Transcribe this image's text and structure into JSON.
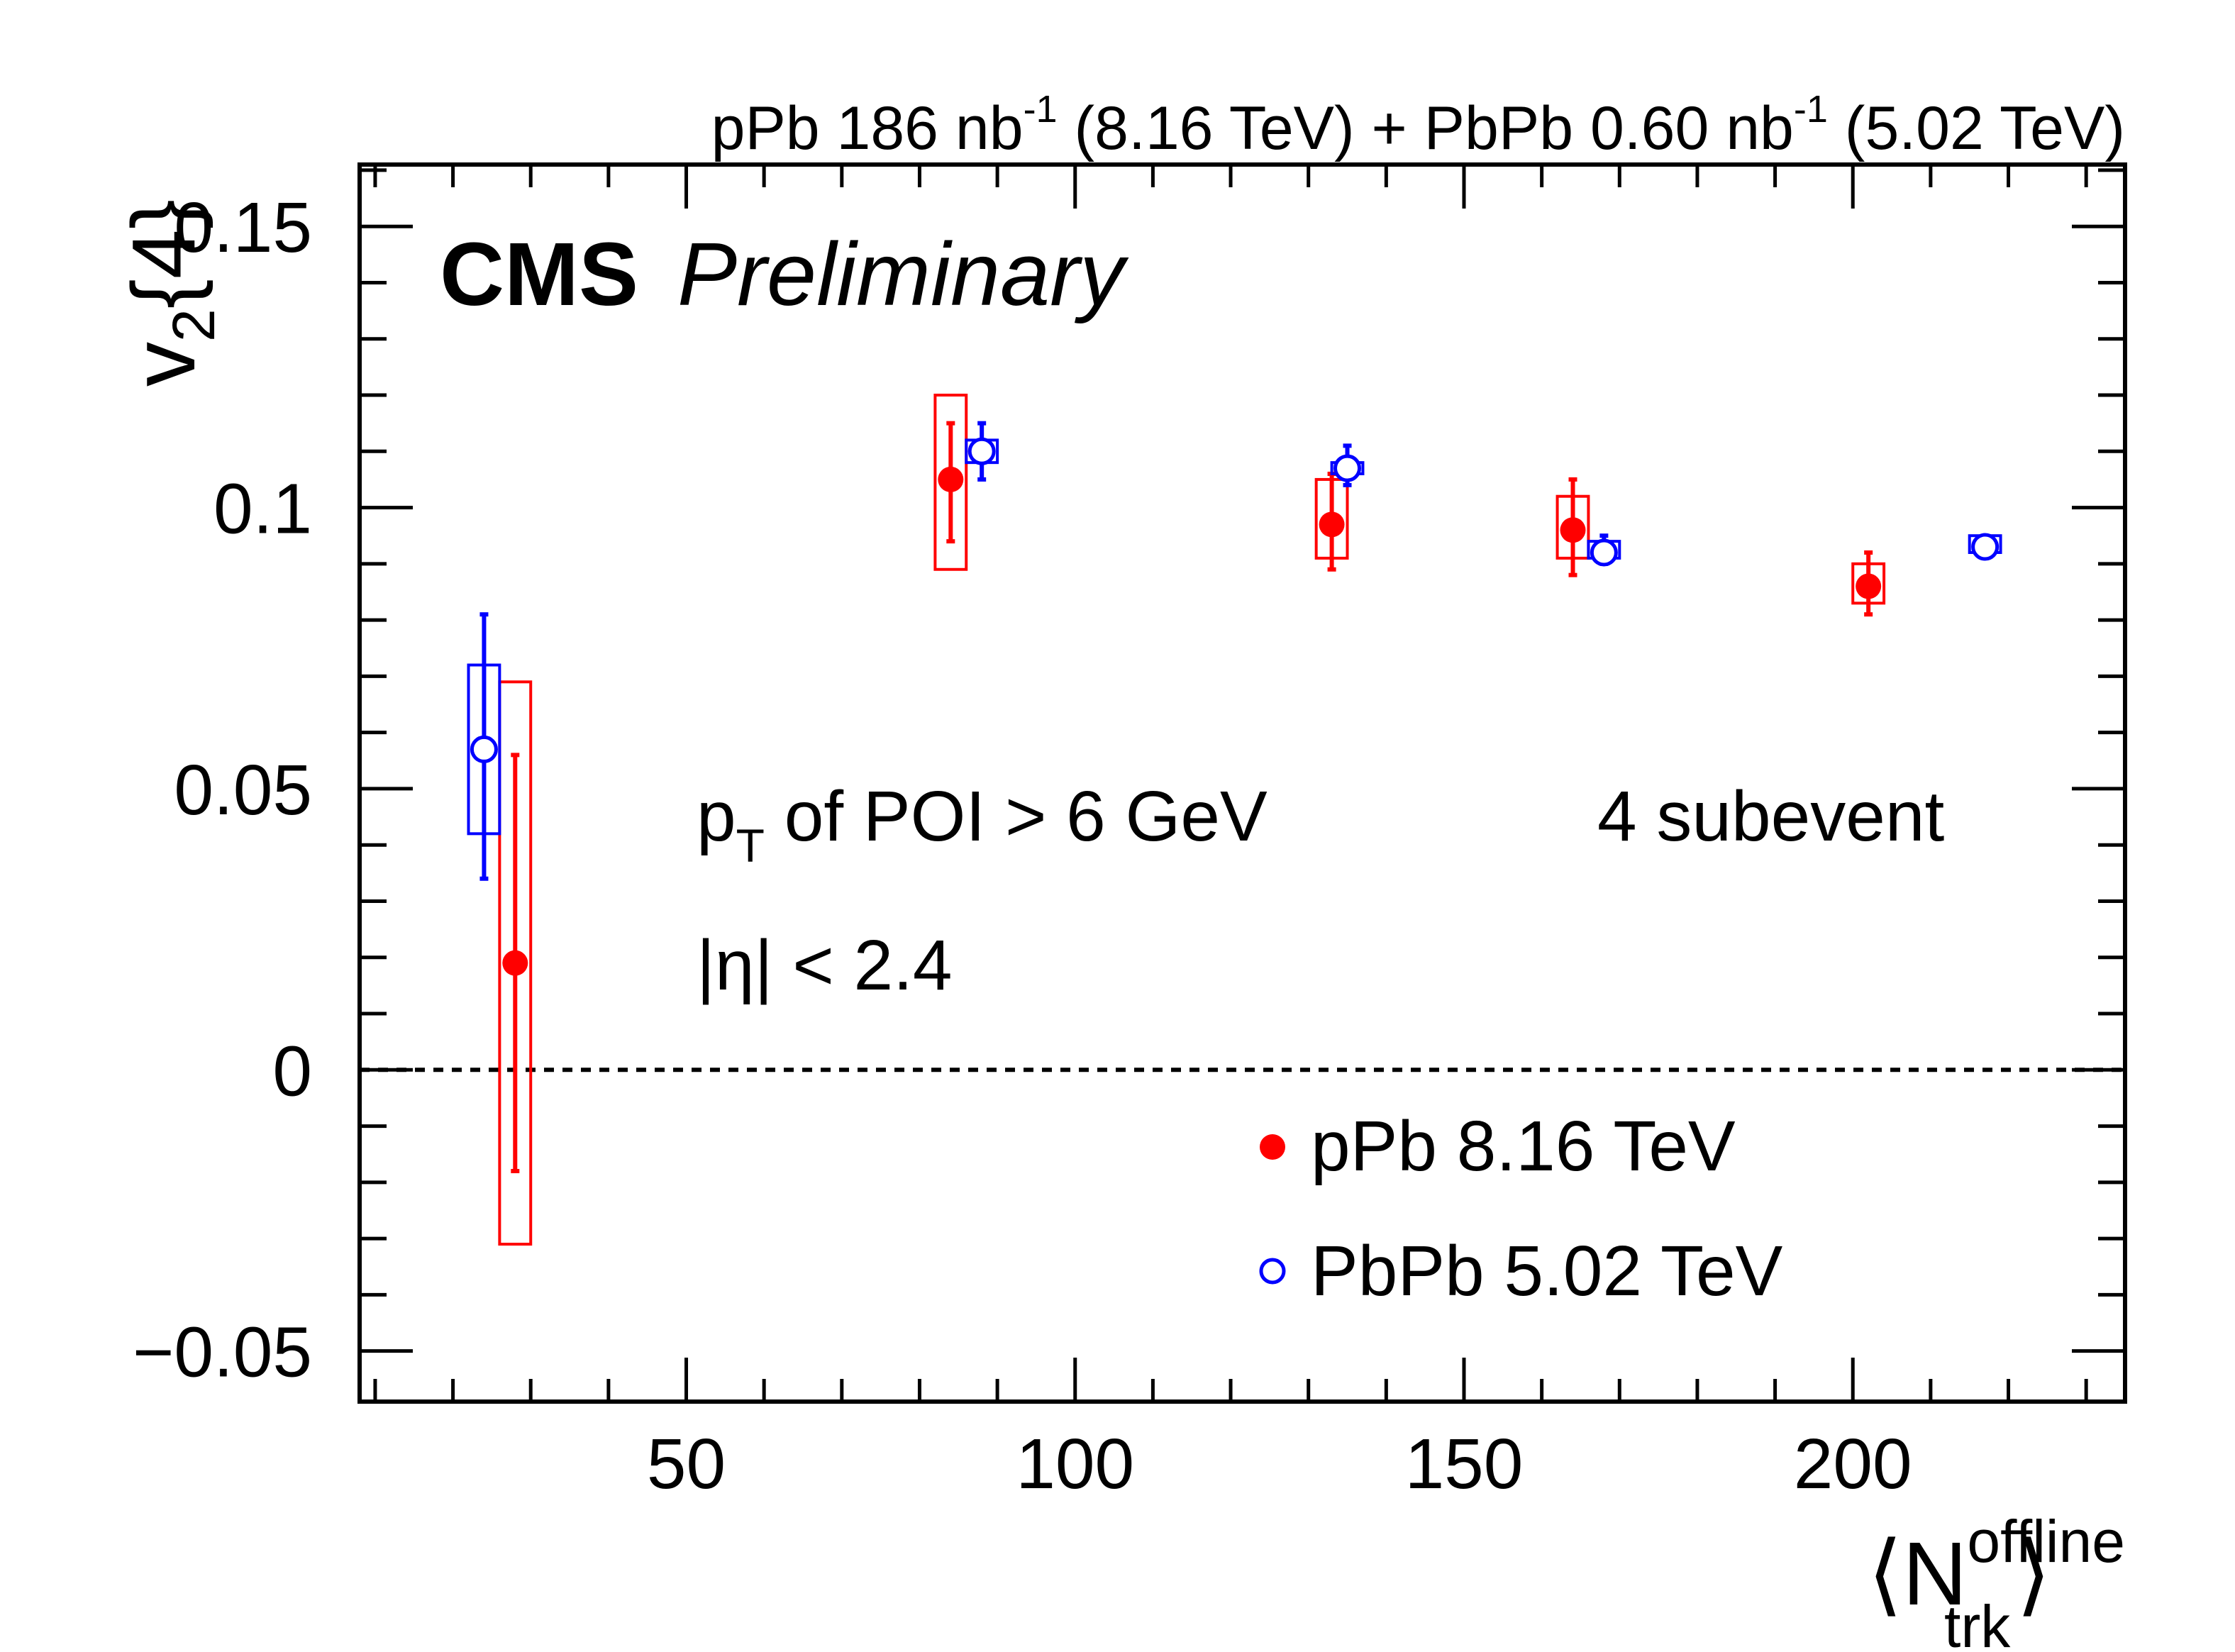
{
  "header": {
    "pPb_label": "pPb 186 nb",
    "pPb_exp": "-1",
    "pPb_energy": " (8.16 TeV) + PbPb 0.60 nb",
    "PbPb_exp": "-1",
    "PbPb_energy": " (5.02 TeV)"
  },
  "brand": {
    "cms": "CMS",
    "status": "Preliminary"
  },
  "annotations": {
    "pt_p": "p",
    "pt_sub": "T",
    "pt_rest": " of POI > 6 GeV",
    "eta": "|η| < 2.4",
    "subevent": "4 subevent"
  },
  "ylabel": {
    "v": "v",
    "sub": "2",
    "rest": "{4}"
  },
  "xlabel": {
    "open": "⟨N",
    "sup": "offline",
    "sub": "trk",
    "close": "⟩"
  },
  "colors": {
    "pPb": "#ff0000",
    "PbPb": "#0000ff"
  },
  "chart_data": {
    "type": "scatter",
    "xlim": [
      8,
      235
    ],
    "ylim": [
      -0.059,
      0.161
    ],
    "xticks": [
      {
        "value": 50,
        "label": "50"
      },
      {
        "value": 100,
        "label": "100"
      },
      {
        "value": 150,
        "label": "150"
      },
      {
        "value": 200,
        "label": "200"
      }
    ],
    "yticks": [
      {
        "value": -0.05,
        "label": "−0.05"
      },
      {
        "value": 0,
        "label": "0"
      },
      {
        "value": 0.05,
        "label": "0.05"
      },
      {
        "value": 0.1,
        "label": "0.1"
      },
      {
        "value": 0.15,
        "label": "0.15"
      }
    ],
    "reference_line": 0,
    "legend_position": "bottom-right",
    "series": [
      {
        "name": "pPb 8.16 TeV",
        "marker": "filled-circle",
        "color": "#ff0000",
        "points": [
          {
            "x": 28,
            "y": 0.019,
            "stat_lo": -0.018,
            "stat_hi": 0.056,
            "sys_lo": -0.031,
            "sys_hi": 0.069,
            "sys_w": 4
          },
          {
            "x": 84,
            "y": 0.105,
            "stat_lo": 0.094,
            "stat_hi": 0.115,
            "sys_lo": 0.089,
            "sys_hi": 0.12,
            "sys_w": 4
          },
          {
            "x": 133,
            "y": 0.097,
            "stat_lo": 0.089,
            "stat_hi": 0.106,
            "sys_lo": 0.091,
            "sys_hi": 0.105,
            "sys_w": 4
          },
          {
            "x": 164,
            "y": 0.096,
            "stat_lo": 0.088,
            "stat_hi": 0.105,
            "sys_lo": 0.091,
            "sys_hi": 0.102,
            "sys_w": 4
          },
          {
            "x": 202,
            "y": 0.086,
            "stat_lo": 0.081,
            "stat_hi": 0.092,
            "sys_lo": 0.083,
            "sys_hi": 0.09,
            "sys_w": 4
          }
        ]
      },
      {
        "name": "PbPb 5.02 TeV",
        "marker": "open-circle",
        "color": "#0000ff",
        "points": [
          {
            "x": 24,
            "y": 0.057,
            "stat_lo": 0.034,
            "stat_hi": 0.081,
            "sys_lo": 0.042,
            "sys_hi": 0.072,
            "sys_w": 4
          },
          {
            "x": 88,
            "y": 0.11,
            "stat_lo": 0.105,
            "stat_hi": 0.115,
            "sys_lo": 0.108,
            "sys_hi": 0.112,
            "sys_w": 4
          },
          {
            "x": 135,
            "y": 0.107,
            "stat_lo": 0.104,
            "stat_hi": 0.111,
            "sys_lo": 0.106,
            "sys_hi": 0.108,
            "sys_w": 4
          },
          {
            "x": 168,
            "y": 0.092,
            "stat_lo": 0.09,
            "stat_hi": 0.095,
            "sys_lo": 0.091,
            "sys_hi": 0.094,
            "sys_w": 4
          },
          {
            "x": 217,
            "y": 0.093,
            "stat_lo": 0.092,
            "stat_hi": 0.094,
            "sys_lo": 0.092,
            "sys_hi": 0.095,
            "sys_w": 4
          }
        ]
      }
    ]
  }
}
